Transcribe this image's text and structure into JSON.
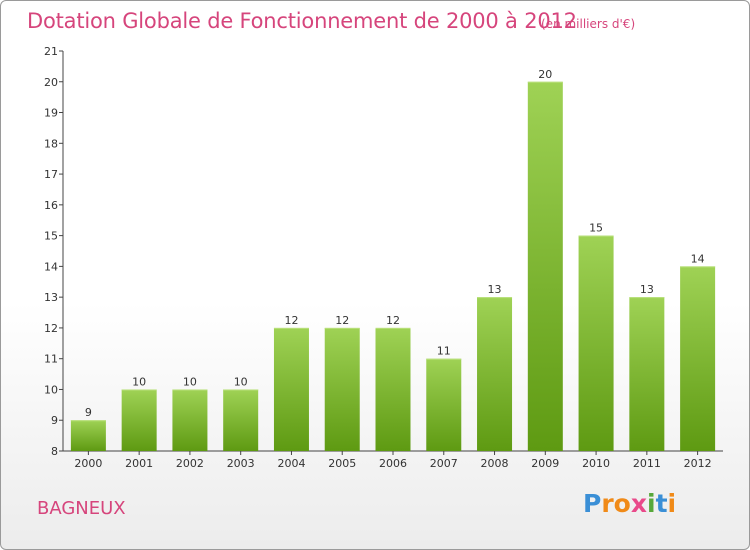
{
  "header": {
    "title": "Dotation Globale de Fonctionnement de 2000 à 2012",
    "unit": "(en milliers d'€)"
  },
  "commune": "BAGNEUX",
  "brand": {
    "letters": [
      "P",
      "r",
      "o",
      "x",
      "i",
      "t",
      "i"
    ],
    "colors": [
      "#3a8fd6",
      "#f08a18",
      "#f08a18",
      "#e94a8a",
      "#57a83a",
      "#3a8fd6",
      "#f08a18"
    ]
  },
  "colors": {
    "bar_top": "#9fd255",
    "bar_bottom": "#5e9a12",
    "accent": "#d6457c"
  },
  "chart_data": {
    "type": "bar",
    "title": "Dotation Globale de Fonctionnement de 2000 à 2012",
    "subtitle": "(en milliers d'€)",
    "categories": [
      "2000",
      "2001",
      "2002",
      "2003",
      "2004",
      "2005",
      "2006",
      "2007",
      "2008",
      "2009",
      "2010",
      "2011",
      "2012"
    ],
    "values": [
      9,
      10,
      10,
      10,
      12,
      12,
      12,
      11,
      13,
      20,
      15,
      13,
      14
    ],
    "xlabel": "",
    "ylabel": "",
    "ylim": [
      8,
      21
    ],
    "yticks": [
      8,
      9,
      10,
      11,
      12,
      13,
      14,
      15,
      16,
      17,
      18,
      19,
      20,
      21
    ],
    "grid": false,
    "legend": "none"
  }
}
